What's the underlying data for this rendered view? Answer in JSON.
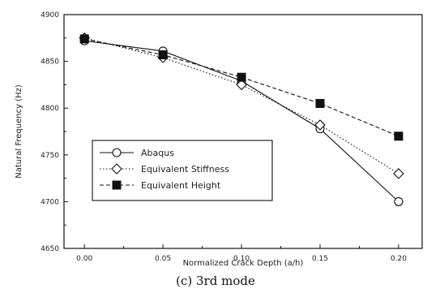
{
  "chart_data": {
    "type": "line",
    "xlabel": "Normalized Crack Depth (a/h)",
    "ylabel": "Natural Frequency (Hz)",
    "caption": "(c) 3rd mode",
    "x": [
      0.0,
      0.05,
      0.1,
      0.15,
      0.2
    ],
    "x_tick_labels": [
      "0.00",
      "0.05",
      "0.10",
      "0.15",
      "0.20"
    ],
    "xlim": [
      -0.013,
      0.215
    ],
    "ylim": [
      4650,
      4900
    ],
    "y_ticks": [
      4650,
      4700,
      4750,
      4800,
      4850,
      4900
    ],
    "y_tick_labels": [
      "4650",
      "4700",
      "4750",
      "4800",
      "4850",
      "4900"
    ],
    "grid": false,
    "legend_position": "lower-left",
    "series": [
      {
        "name": "Abaqus",
        "values": [
          4872,
          4861,
          4829,
          4778,
          4700
        ],
        "line": "solid",
        "marker": "open-circle"
      },
      {
        "name": "Equivalent Stiffness",
        "values": [
          4875,
          4854,
          4825,
          4782,
          4730
        ],
        "line": "dotted",
        "marker": "open-diamond"
      },
      {
        "name": "Equivalent Height",
        "values": [
          4874,
          4857,
          4833,
          4805,
          4770
        ],
        "line": "dashed",
        "marker": "filled-square"
      }
    ]
  }
}
